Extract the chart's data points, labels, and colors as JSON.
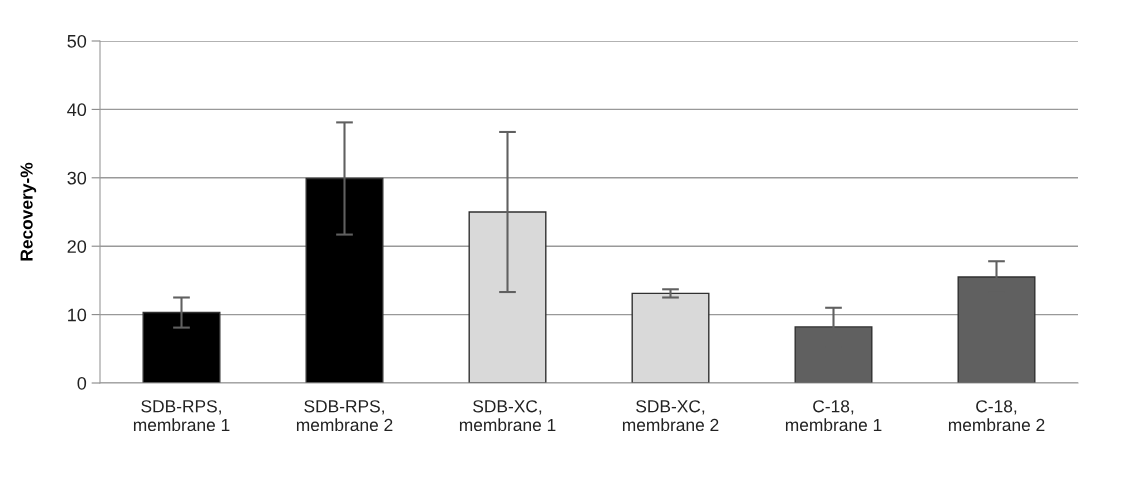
{
  "chart_data": {
    "type": "bar",
    "ylabel": "Recovery-%",
    "categories": [
      "SDB-RPS,\nmembrane 1",
      "SDB-RPS,\nmembrane 2",
      "SDB-XC,\nmembrane 1",
      "SDB-XC,\nmembrane 2",
      "C-18,\nmembrane 1",
      "C-18,\nmembrane 2"
    ],
    "values": [
      10.3,
      29.9,
      25.0,
      13.1,
      8.2,
      15.5
    ],
    "errors": [
      2.2,
      8.2,
      11.7,
      0.6,
      2.8,
      2.3
    ],
    "colors": [
      "#000000",
      "#000000",
      "#d9d9d9",
      "#d9d9d9",
      "#606060",
      "#606060"
    ],
    "ylim": [
      0,
      50
    ],
    "yticks": [
      0,
      10,
      20,
      30,
      40,
      50
    ],
    "grid": "y"
  }
}
